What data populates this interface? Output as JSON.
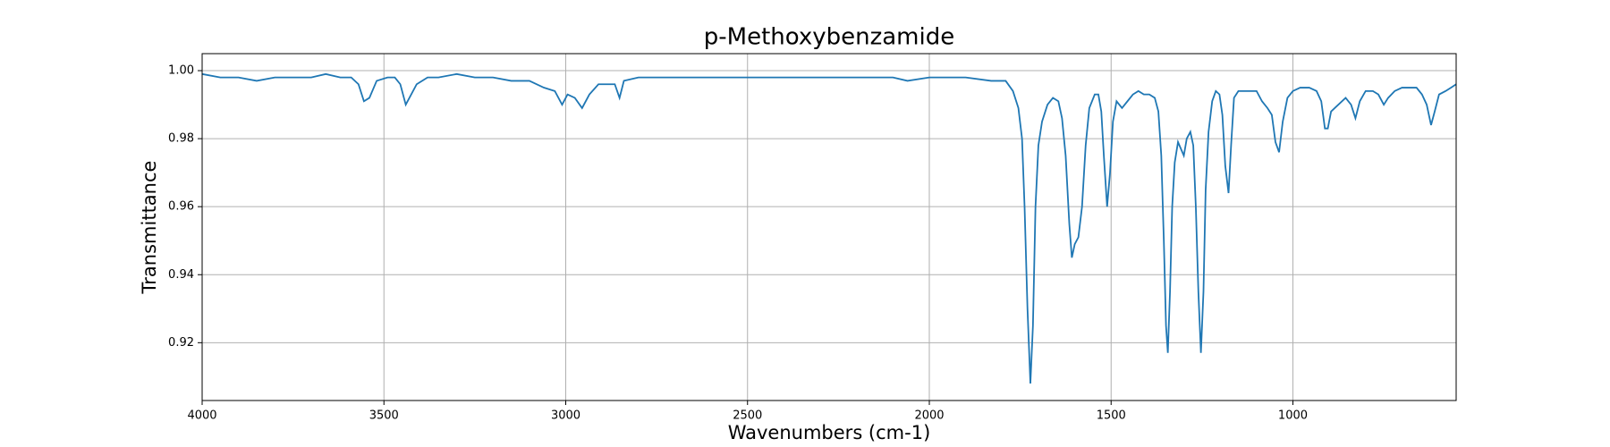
{
  "chart_data": {
    "type": "line",
    "title": "p-Methoxybenzamide",
    "x_label": "Wavenumbers (cm-1)",
    "y_label": "Transmittance",
    "x": [
      4000,
      3950,
      3900,
      3850,
      3800,
      3750,
      3700,
      3660,
      3620,
      3590,
      3570,
      3555,
      3540,
      3520,
      3490,
      3470,
      3455,
      3440,
      3425,
      3410,
      3380,
      3350,
      3300,
      3250,
      3200,
      3150,
      3100,
      3060,
      3030,
      3010,
      2995,
      2975,
      2955,
      2935,
      2910,
      2880,
      2865,
      2852,
      2840,
      2800,
      2700,
      2600,
      2500,
      2400,
      2300,
      2200,
      2100,
      2060,
      2000,
      1900,
      1830,
      1790,
      1770,
      1755,
      1745,
      1738,
      1730,
      1722,
      1715,
      1708,
      1700,
      1690,
      1675,
      1660,
      1645,
      1635,
      1625,
      1615,
      1608,
      1600,
      1590,
      1580,
      1570,
      1560,
      1545,
      1535,
      1527,
      1520,
      1511,
      1503,
      1495,
      1485,
      1470,
      1455,
      1440,
      1425,
      1410,
      1395,
      1380,
      1370,
      1362,
      1355,
      1349,
      1344,
      1338,
      1332,
      1325,
      1316,
      1308,
      1300,
      1292,
      1282,
      1274,
      1267,
      1260,
      1253,
      1246,
      1240,
      1232,
      1222,
      1212,
      1202,
      1194,
      1186,
      1177,
      1170,
      1162,
      1150,
      1135,
      1120,
      1100,
      1085,
      1070,
      1058,
      1048,
      1038,
      1028,
      1015,
      1000,
      980,
      955,
      935,
      922,
      912,
      904,
      895,
      875,
      855,
      840,
      828,
      816,
      800,
      780,
      765,
      750,
      738,
      720,
      700,
      680,
      660,
      645,
      632,
      620,
      610,
      598,
      580,
      565,
      551
    ],
    "series": [
      {
        "name": "p-Methoxybenzamide",
        "color": "#1f77b4",
        "values": [
          0.999,
          0.998,
          0.998,
          0.997,
          0.998,
          0.998,
          0.998,
          0.999,
          0.998,
          0.998,
          0.996,
          0.991,
          0.992,
          0.997,
          0.998,
          0.998,
          0.996,
          0.99,
          0.993,
          0.996,
          0.998,
          0.998,
          0.999,
          0.998,
          0.998,
          0.997,
          0.997,
          0.995,
          0.994,
          0.99,
          0.993,
          0.992,
          0.989,
          0.993,
          0.996,
          0.996,
          0.996,
          0.992,
          0.997,
          0.998,
          0.998,
          0.998,
          0.998,
          0.998,
          0.998,
          0.998,
          0.998,
          0.997,
          0.998,
          0.998,
          0.997,
          0.997,
          0.994,
          0.989,
          0.98,
          0.96,
          0.93,
          0.908,
          0.925,
          0.96,
          0.978,
          0.985,
          0.99,
          0.992,
          0.991,
          0.986,
          0.975,
          0.955,
          0.945,
          0.949,
          0.951,
          0.96,
          0.978,
          0.989,
          0.993,
          0.993,
          0.988,
          0.975,
          0.96,
          0.97,
          0.985,
          0.991,
          0.989,
          0.991,
          0.993,
          0.994,
          0.993,
          0.993,
          0.992,
          0.988,
          0.975,
          0.95,
          0.925,
          0.917,
          0.935,
          0.96,
          0.973,
          0.979,
          0.977,
          0.975,
          0.98,
          0.982,
          0.978,
          0.96,
          0.935,
          0.917,
          0.935,
          0.965,
          0.982,
          0.991,
          0.994,
          0.993,
          0.987,
          0.972,
          0.964,
          0.978,
          0.992,
          0.994,
          0.994,
          0.994,
          0.994,
          0.991,
          0.989,
          0.987,
          0.979,
          0.976,
          0.985,
          0.992,
          0.994,
          0.995,
          0.995,
          0.994,
          0.991,
          0.983,
          0.983,
          0.988,
          0.99,
          0.992,
          0.99,
          0.986,
          0.991,
          0.994,
          0.994,
          0.993,
          0.99,
          0.992,
          0.994,
          0.995,
          0.995,
          0.995,
          0.993,
          0.99,
          0.984,
          0.988,
          0.993,
          0.994,
          0.995,
          0.996
        ]
      }
    ],
    "xlim": [
      4000,
      551
    ],
    "ylim": [
      0.903,
      1.005
    ],
    "xticks": [
      4000,
      3500,
      3000,
      2500,
      2000,
      1500,
      1000
    ],
    "yticks": [
      0.92,
      0.94,
      0.96,
      0.98,
      {
        "value": 1,
        "label": "1.00"
      }
    ],
    "grid": true
  }
}
